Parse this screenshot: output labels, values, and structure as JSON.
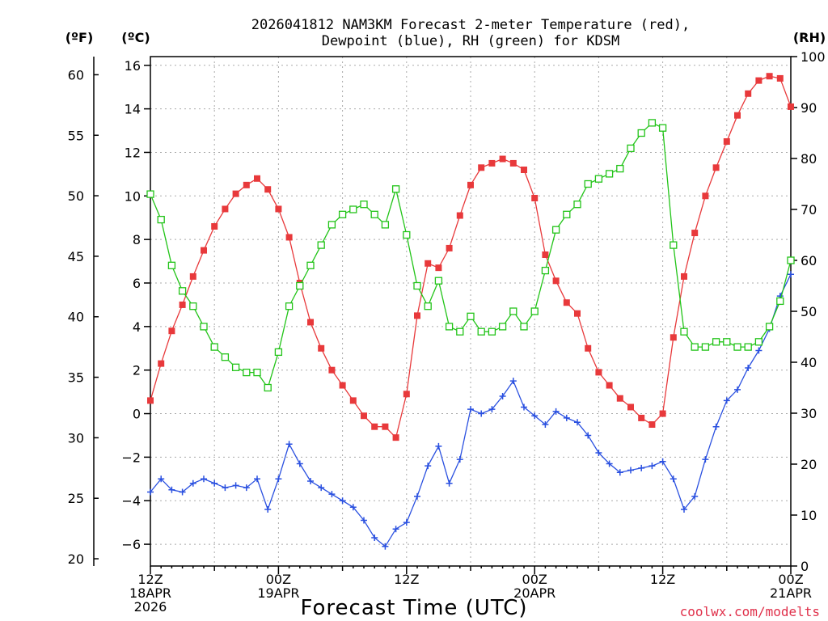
{
  "chart_data": {
    "type": "line",
    "title_line1": "2026041812 NAM3KM Forecast 2-meter Temperature (red),",
    "title_line2": "Dewpoint (blue), RH (green) for KDSM",
    "xlabel": "Forecast Time (UTC)",
    "credit": "coolwx.com/modelts",
    "units": {
      "fahrenheit": "(ºF)",
      "celsius": "(ºC)",
      "rh": "(RH)"
    },
    "left_f_axis": {
      "ylim": [
        19.4,
        61.5
      ],
      "ticks": [
        "20",
        "25",
        "30",
        "35",
        "40",
        "45",
        "50",
        "55",
        "60"
      ]
    },
    "left_c_axis": {
      "ylim": [
        -7,
        16.4
      ],
      "ticks": [
        "−6",
        "−4",
        "−2",
        "0",
        "2",
        "4",
        "6",
        "8",
        "10",
        "12",
        "14",
        "16"
      ]
    },
    "right_rh_axis": {
      "ylim": [
        0,
        100
      ],
      "ticks": [
        "0",
        "10",
        "20",
        "30",
        "40",
        "50",
        "60",
        "70",
        "80",
        "90",
        "100"
      ]
    },
    "x_range_hours": [
      0,
      60
    ],
    "x_ticks": [
      {
        "hour": 0,
        "lines": [
          "12Z",
          "18APR",
          "2026"
        ]
      },
      {
        "hour": 12,
        "lines": [
          "00Z",
          "19APR"
        ]
      },
      {
        "hour": 24,
        "lines": [
          "12Z"
        ]
      },
      {
        "hour": 36,
        "lines": [
          "00Z",
          "20APR"
        ]
      },
      {
        "hour": 48,
        "lines": [
          "12Z"
        ]
      },
      {
        "hour": 60,
        "lines": [
          "00Z",
          "21APR"
        ]
      }
    ],
    "series": [
      {
        "name": "Temperature",
        "axis": "celsius",
        "color": "#e8393b",
        "marker": "filled-square",
        "values": [
          0.6,
          2.3,
          3.8,
          5.0,
          6.3,
          7.5,
          8.6,
          9.4,
          10.1,
          10.5,
          10.8,
          10.3,
          9.4,
          8.1,
          6.0,
          4.2,
          3.0,
          2.0,
          1.3,
          0.6,
          -0.1,
          -0.6,
          -0.6,
          -1.1,
          0.9,
          4.5,
          6.9,
          6.7,
          7.6,
          9.1,
          10.5,
          11.3,
          11.5,
          11.7,
          11.5,
          11.2,
          9.9,
          7.3,
          6.1,
          5.1,
          4.6,
          3.0,
          1.9,
          1.3,
          0.7,
          0.3,
          -0.2,
          -0.5,
          0.0,
          3.5,
          6.3,
          8.3,
          10.0,
          11.3,
          12.5,
          13.7,
          14.7,
          15.3,
          15.5,
          15.4,
          14.1
        ]
      },
      {
        "name": "Dewpoint",
        "axis": "celsius",
        "color": "#2a50e0",
        "marker": "plus",
        "values": [
          -3.6,
          -3.0,
          -3.5,
          -3.6,
          -3.2,
          -3.0,
          -3.2,
          -3.4,
          -3.3,
          -3.4,
          -3.0,
          -4.4,
          -3.0,
          -1.4,
          -2.3,
          -3.1,
          -3.4,
          -3.7,
          -4.0,
          -4.3,
          -4.9,
          -5.7,
          -6.1,
          -5.3,
          -5.0,
          -3.8,
          -2.4,
          -1.5,
          -3.2,
          -2.1,
          0.2,
          0.0,
          0.2,
          0.8,
          1.5,
          0.3,
          -0.1,
          -0.5,
          0.1,
          -0.2,
          -0.4,
          -1.0,
          -1.8,
          -2.3,
          -2.7,
          -2.6,
          -2.5,
          -2.4,
          -2.2,
          -3.0,
          -4.4,
          -3.8,
          -2.1,
          -0.6,
          0.6,
          1.1,
          2.1,
          2.9,
          3.9,
          5.4,
          6.4
        ]
      },
      {
        "name": "Relative Humidity",
        "axis": "rh",
        "color": "#22c418",
        "marker": "open-square",
        "values": [
          73,
          68,
          59,
          54,
          51,
          47,
          43,
          41,
          39,
          38,
          38,
          35,
          42,
          51,
          55,
          59,
          63,
          67,
          69,
          70,
          71,
          69,
          67,
          74,
          65,
          55,
          51,
          56,
          47,
          46,
          49,
          46,
          46,
          47,
          50,
          47,
          50,
          58,
          66,
          69,
          71,
          75,
          76,
          77,
          78,
          82,
          85,
          87,
          86,
          63,
          46,
          43,
          43,
          44,
          44,
          43,
          43,
          44,
          47,
          52,
          60
        ]
      }
    ]
  }
}
